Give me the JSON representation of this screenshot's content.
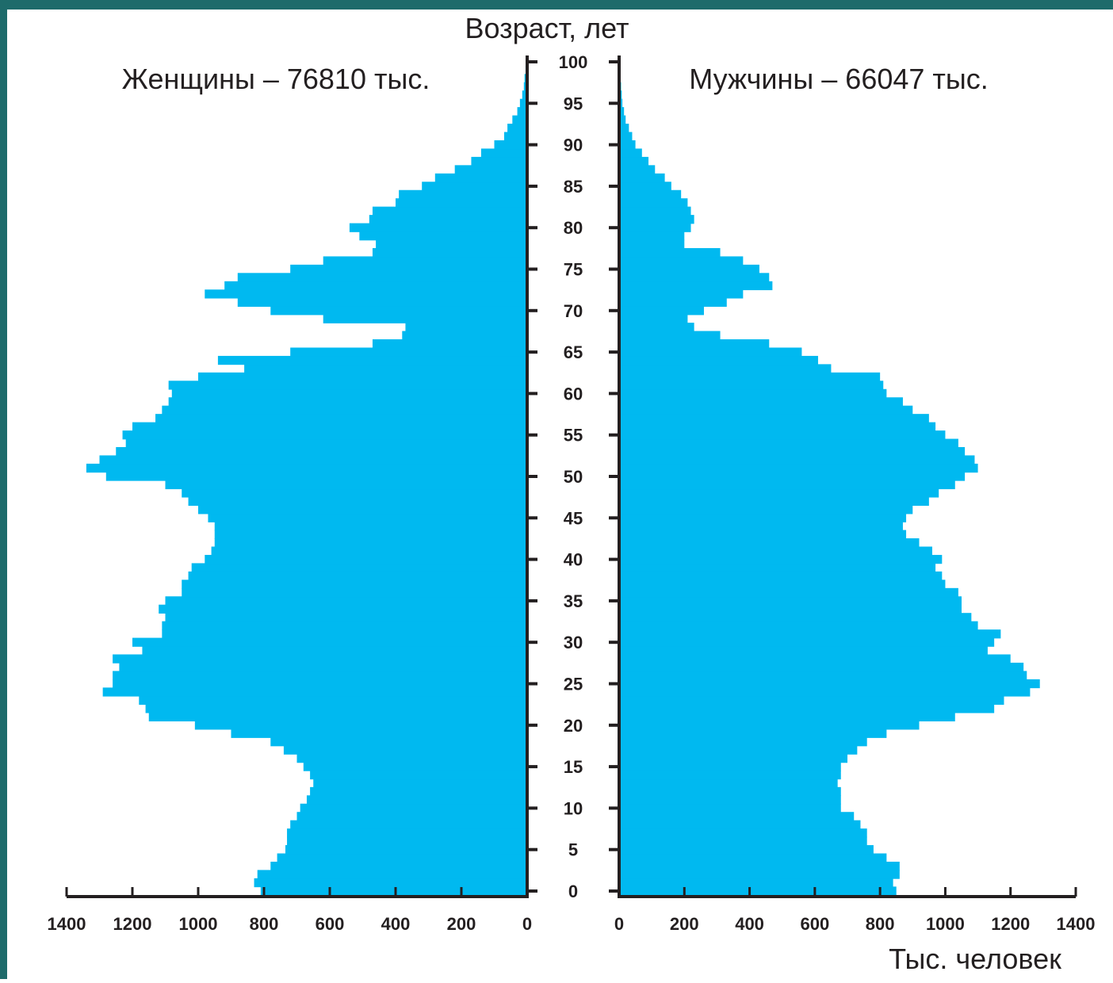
{
  "frame_colors": {
    "top": "#1e6b6b",
    "left_bottom": "#0f4f4f",
    "left_top": "#2a7f7f",
    "bar": "#00b9f0"
  },
  "chart_data": {
    "type": "bar",
    "orientation": "horizontal",
    "title": "",
    "yaxis_title": "Возраст, лет",
    "xaxis_title": "Тыс. человек",
    "female_label": "Женщины – 76810 тыс.",
    "male_label": "Мужчины – 66047 тыс.",
    "age_ticks": [
      0,
      5,
      10,
      15,
      20,
      25,
      30,
      35,
      40,
      45,
      50,
      55,
      60,
      65,
      70,
      75,
      80,
      85,
      90,
      95,
      100
    ],
    "x_ticks_female": [
      1400,
      1200,
      1000,
      800,
      600,
      400,
      200,
      0
    ],
    "x_ticks_male": [
      0,
      200,
      400,
      600,
      800,
      1000,
      1200,
      1400
    ],
    "xlim": [
      0,
      1400
    ],
    "ylim": [
      0,
      101
    ],
    "categories": [
      0,
      1,
      2,
      3,
      4,
      5,
      6,
      7,
      8,
      9,
      10,
      11,
      12,
      13,
      14,
      15,
      16,
      17,
      18,
      19,
      20,
      21,
      22,
      23,
      24,
      25,
      26,
      27,
      28,
      29,
      30,
      31,
      32,
      33,
      34,
      35,
      36,
      37,
      38,
      39,
      40,
      41,
      42,
      43,
      44,
      45,
      46,
      47,
      48,
      49,
      50,
      51,
      52,
      53,
      54,
      55,
      56,
      57,
      58,
      59,
      60,
      61,
      62,
      63,
      64,
      65,
      66,
      67,
      68,
      69,
      70,
      71,
      72,
      73,
      74,
      75,
      76,
      77,
      78,
      79,
      80,
      81,
      82,
      83,
      84,
      85,
      86,
      87,
      88,
      89,
      90,
      91,
      92,
      93,
      94,
      95,
      96,
      97,
      98,
      99,
      100
    ],
    "series": [
      {
        "name": "Женщины",
        "values": [
          810,
          830,
          820,
          780,
          760,
          735,
          730,
          730,
          720,
          700,
          690,
          670,
          660,
          650,
          660,
          680,
          700,
          740,
          780,
          900,
          1010,
          1150,
          1160,
          1180,
          1290,
          1260,
          1260,
          1240,
          1260,
          1170,
          1200,
          1110,
          1110,
          1100,
          1120,
          1100,
          1050,
          1050,
          1030,
          1020,
          980,
          960,
          950,
          950,
          950,
          970,
          1000,
          1030,
          1050,
          1100,
          1280,
          1340,
          1300,
          1250,
          1220,
          1230,
          1200,
          1130,
          1110,
          1090,
          1080,
          1090,
          1000,
          860,
          940,
          720,
          470,
          380,
          370,
          620,
          780,
          880,
          980,
          920,
          880,
          720,
          620,
          470,
          460,
          510,
          540,
          480,
          470,
          400,
          390,
          320,
          280,
          220,
          170,
          140,
          100,
          70,
          60,
          45,
          30,
          22,
          15,
          10,
          8,
          5,
          3
        ]
      },
      {
        "name": "Мужчины",
        "values": [
          850,
          840,
          860,
          860,
          820,
          780,
          760,
          760,
          740,
          720,
          680,
          680,
          680,
          670,
          680,
          680,
          700,
          730,
          760,
          820,
          920,
          1030,
          1150,
          1180,
          1260,
          1290,
          1250,
          1240,
          1200,
          1130,
          1150,
          1170,
          1100,
          1080,
          1050,
          1050,
          1040,
          1000,
          990,
          970,
          990,
          960,
          920,
          880,
          870,
          880,
          900,
          950,
          980,
          1030,
          1060,
          1100,
          1090,
          1060,
          1040,
          1000,
          970,
          950,
          900,
          870,
          820,
          810,
          800,
          650,
          610,
          560,
          460,
          310,
          230,
          210,
          260,
          330,
          380,
          470,
          460,
          430,
          380,
          310,
          200,
          200,
          220,
          230,
          220,
          210,
          190,
          160,
          140,
          110,
          90,
          70,
          50,
          40,
          30,
          20,
          15,
          10,
          8,
          6,
          4,
          3,
          2
        ]
      }
    ]
  }
}
